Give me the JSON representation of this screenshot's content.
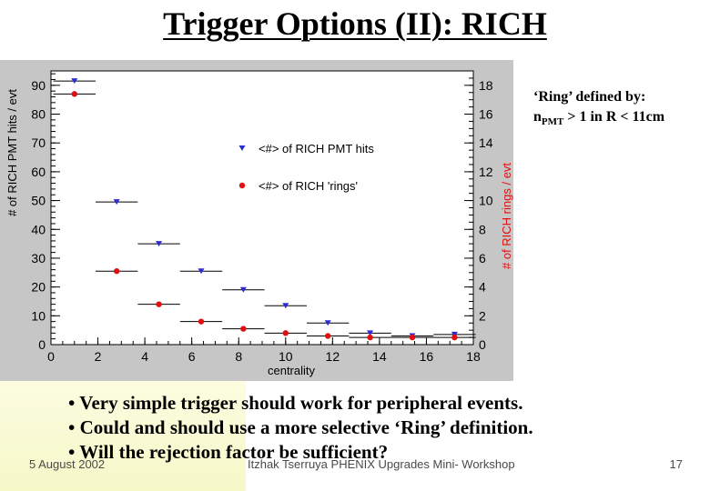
{
  "slide": {
    "title": "Trigger Options (II): RICH",
    "note_line1": "‘Ring’ defined by:",
    "note_line2_prefix": "n",
    "note_line2_sub": "PMT",
    "note_line2_suffix": " > 1 in R < 11cm",
    "bullets": [
      "• Very simple trigger should work for peripheral events.",
      "• Could and should use a more selective ‘Ring’ definition.",
      "• Will the rejection factor be sufficient?"
    ],
    "footer_date": "5 August 2002",
    "footer_author": "Itzhak Tserruya PHENIX Upgrades Mini- Workshop",
    "footer_page": "17"
  },
  "chart_data": {
    "type": "scatter",
    "xlabel": "centrality",
    "ylabel": "# of RICH PMT hits / evt",
    "y2label": "# of RICH rings / evt",
    "xlim": [
      0,
      18
    ],
    "ylim": [
      0,
      95
    ],
    "y2lim": [
      0,
      19
    ],
    "xticks": [
      "0",
      "2",
      "4",
      "6",
      "8",
      "10",
      "12",
      "14",
      "16",
      "18"
    ],
    "yticks": [
      "0",
      "10",
      "20",
      "30",
      "40",
      "50",
      "60",
      "70",
      "80",
      "90"
    ],
    "y2ticks": [
      "0",
      "2",
      "4",
      "6",
      "8",
      "10",
      "12",
      "14",
      "16",
      "18"
    ],
    "legend_position": "center",
    "series": [
      {
        "name": "<#> of RICH PMT hits",
        "axis": "left",
        "marker": "triangle-down",
        "color": "#2b2bd6",
        "points": [
          {
            "x": 1,
            "y": 91.5
          },
          {
            "x": 2.8,
            "y": 49.5
          },
          {
            "x": 4.6,
            "y": 35
          },
          {
            "x": 6.4,
            "y": 25.5
          },
          {
            "x": 8.2,
            "y": 19
          },
          {
            "x": 10,
            "y": 13.5
          },
          {
            "x": 11.8,
            "y": 7.5
          },
          {
            "x": 13.6,
            "y": 4
          },
          {
            "x": 15.4,
            "y": 3
          },
          {
            "x": 17.2,
            "y": 3.5
          }
        ]
      },
      {
        "name": "<#> of RICH 'rings'",
        "axis": "right",
        "marker": "circle",
        "color": "#e01010",
        "points": [
          {
            "x": 1,
            "y": 17.4
          },
          {
            "x": 2.8,
            "y": 5.1
          },
          {
            "x": 4.6,
            "y": 2.8
          },
          {
            "x": 6.4,
            "y": 1.6
          },
          {
            "x": 8.2,
            "y": 1.1
          },
          {
            "x": 10,
            "y": 0.8
          },
          {
            "x": 11.8,
            "y": 0.6
          },
          {
            "x": 13.6,
            "y": 0.5
          },
          {
            "x": 15.4,
            "y": 0.5
          },
          {
            "x": 17.2,
            "y": 0.5
          }
        ]
      }
    ]
  }
}
